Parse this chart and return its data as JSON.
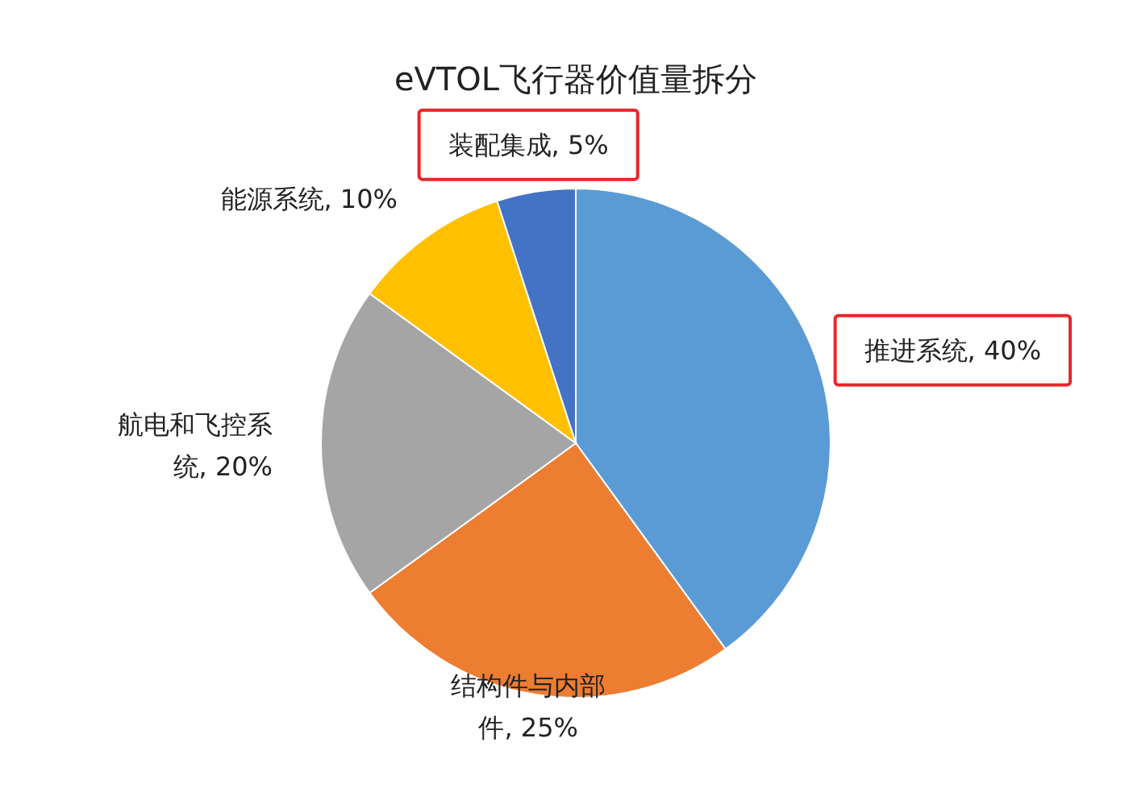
{
  "chart_data": {
    "type": "pie",
    "title": "eVTOL飞行器价值量拆分",
    "categories": [
      "推进系统",
      "结构件与内部件",
      "航电和飞控系统",
      "能源系统",
      "装配集成"
    ],
    "values": [
      40,
      25,
      20,
      10,
      5
    ],
    "colors": [
      "#5b9bd5",
      "#ed7d31",
      "#a5a5a5",
      "#ffc000",
      "#4472c4"
    ],
    "value_labels": [
      "40%",
      "25%",
      "20%",
      "10%",
      "5%"
    ]
  }
}
